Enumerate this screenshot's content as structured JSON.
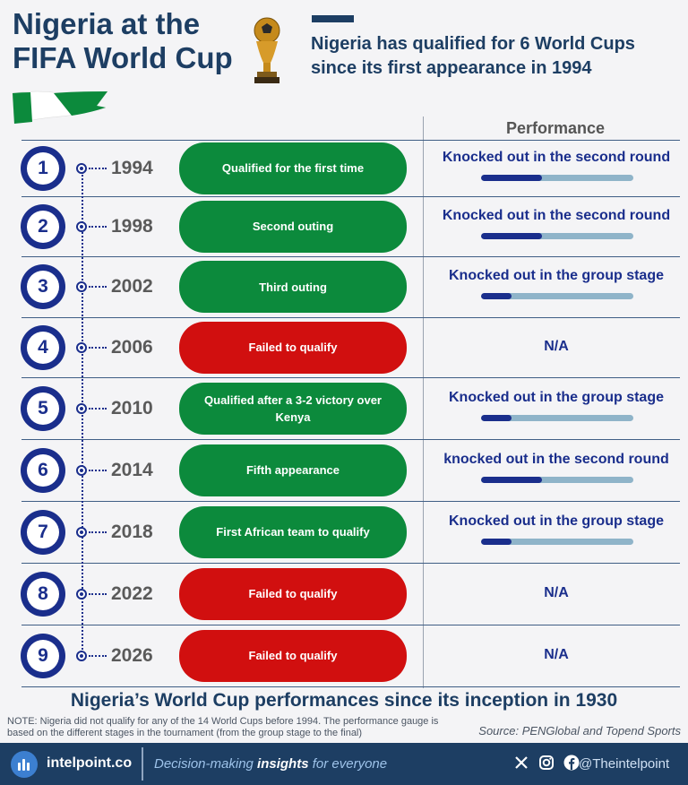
{
  "header": {
    "title": "Nigeria at the FIFA World Cup",
    "subtitle": "Nigeria has qualified for 6 World Cups since its first appearance in 1994"
  },
  "table": {
    "performance_header": "Performance",
    "rows": [
      {
        "num": "1",
        "year": "1994",
        "status": "Qualified for the first time",
        "status_color": "green",
        "performance": "Knocked out in the second round",
        "gauge": 0.4
      },
      {
        "num": "2",
        "year": "1998",
        "status": "Second outing",
        "status_color": "green",
        "performance": "Knocked out in the second round",
        "gauge": 0.4
      },
      {
        "num": "3",
        "year": "2002",
        "status": "Third outing",
        "status_color": "green",
        "performance": "Knocked out in the group stage",
        "gauge": 0.2
      },
      {
        "num": "4",
        "year": "2006",
        "status": "Failed to qualify",
        "status_color": "red",
        "performance": "N/A",
        "gauge": null
      },
      {
        "num": "5",
        "year": "2010",
        "status": "Qualified after a 3-2 victory over Kenya",
        "status_color": "green",
        "performance": "Knocked out in the group stage",
        "gauge": 0.2
      },
      {
        "num": "6",
        "year": "2014",
        "status": "Fifth appearance",
        "status_color": "green",
        "performance": "knocked out in the second round",
        "gauge": 0.4
      },
      {
        "num": "7",
        "year": "2018",
        "status": "First African team to qualify",
        "status_color": "green",
        "performance": "Knocked out in the group stage",
        "gauge": 0.2
      },
      {
        "num": "8",
        "year": "2022",
        "status": "Failed to qualify",
        "status_color": "red",
        "performance": "N/A",
        "gauge": null
      },
      {
        "num": "9",
        "year": "2026",
        "status": "Failed to qualify",
        "status_color": "red",
        "performance": "N/A",
        "gauge": null
      }
    ]
  },
  "footer": {
    "title": "Nigeria’s World Cup performances since its inception in 1930",
    "note": "NOTE: Nigeria did not qualify for any of the 14 World Cups before 1994. The performance gauge is based on the different stages in the tournament (from the group stage to the final)",
    "source": "Source: PENGlobal and Topend Sports"
  },
  "brand_bar": {
    "brand": "intelpoint.co",
    "tagline_pre": "Decision-making ",
    "tagline_bold": "insights",
    "tagline_post": " for everyone",
    "handle": "@Theintelpoint",
    "icons": [
      "x-icon",
      "instagram-icon",
      "facebook-icon"
    ]
  },
  "colors": {
    "navy": "#1d3e63",
    "circle_blue": "#1a2e8c",
    "green": "#0c8a3c",
    "red": "#d10f0f",
    "gauge_track": "#8fb4c9"
  }
}
